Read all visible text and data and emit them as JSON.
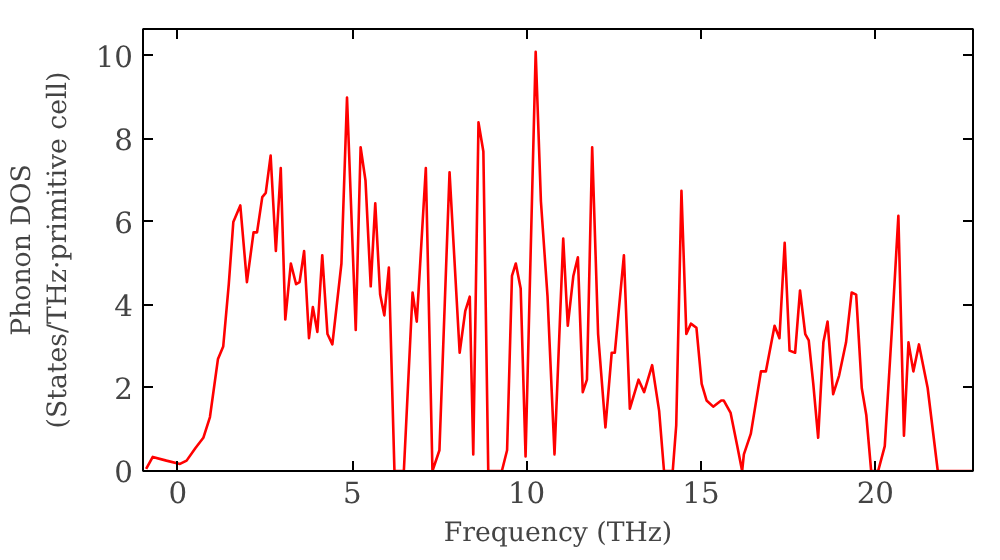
{
  "chart_data": {
    "type": "line",
    "xlabel": "Frequency (THz)",
    "ylabel": "Phonon DOS\n(States/THz·primitive cell)",
    "xlim": [
      -1,
      22.8
    ],
    "ylim": [
      0,
      10.65
    ],
    "xticks": [
      0,
      5,
      10,
      15,
      20
    ],
    "yticks": [
      0,
      2,
      4,
      6,
      8,
      10
    ],
    "grid": false,
    "marker": "none",
    "line_style": "solid",
    "series": [
      {
        "color": "#ff0000",
        "x": [
          -0.91,
          -0.72,
          -0.33,
          0.06,
          0.25,
          0.5,
          0.73,
          0.92,
          1.15,
          1.3,
          1.46,
          1.59,
          1.79,
          1.98,
          2.17,
          2.27,
          2.42,
          2.52,
          2.66,
          2.81,
          2.95,
          3.08,
          3.24,
          3.39,
          3.49,
          3.62,
          3.76,
          3.87,
          4.0,
          4.14,
          4.29,
          4.43,
          4.69,
          4.85,
          5.1,
          5.24,
          5.38,
          5.53,
          5.66,
          5.8,
          5.92,
          6.05,
          6.21,
          6.48,
          6.73,
          6.85,
          7.11,
          7.3,
          7.5,
          7.79,
          8.08,
          8.24,
          8.37,
          8.47,
          8.62,
          8.76,
          8.9,
          9.29,
          9.44,
          9.58,
          9.69,
          9.83,
          9.97,
          10.26,
          10.41,
          10.6,
          10.8,
          11.05,
          11.18,
          11.34,
          11.47,
          11.61,
          11.73,
          11.88,
          12.05,
          12.26,
          12.44,
          12.53,
          12.79,
          12.96,
          13.21,
          13.37,
          13.6,
          13.8,
          13.94,
          14.19,
          14.29,
          14.44,
          14.58,
          14.71,
          14.87,
          15.02,
          15.16,
          15.35,
          15.58,
          15.65,
          15.85,
          16.04,
          16.18,
          16.23,
          16.43,
          16.72,
          16.86,
          17.11,
          17.25,
          17.4,
          17.54,
          17.7,
          17.84,
          17.99,
          18.09,
          18.22,
          18.36,
          18.51,
          18.63,
          18.79,
          18.96,
          19.16,
          19.32,
          19.45,
          19.61,
          19.74,
          19.88,
          20.08,
          20.27,
          20.47,
          20.66,
          20.82,
          20.95,
          21.09,
          21.25,
          21.5,
          21.79,
          22.77
        ],
        "values": [
          0.05,
          0.34,
          0.25,
          0.17,
          0.25,
          0.55,
          0.8,
          1.3,
          2.7,
          3.0,
          4.5,
          6.0,
          6.4,
          4.55,
          5.75,
          5.75,
          6.6,
          6.7,
          7.6,
          5.3,
          7.3,
          3.65,
          5.0,
          4.5,
          4.55,
          5.3,
          3.2,
          3.95,
          3.35,
          5.2,
          3.3,
          3.05,
          5.0,
          9.0,
          3.4,
          7.8,
          7.0,
          4.45,
          6.45,
          4.25,
          3.75,
          4.9,
          0,
          0,
          4.3,
          3.6,
          7.3,
          0,
          0.5,
          7.2,
          2.85,
          3.85,
          4.2,
          0.4,
          8.4,
          7.7,
          0,
          0,
          0.5,
          4.7,
          5.0,
          4.4,
          0.35,
          10.1,
          6.5,
          4.2,
          0.4,
          5.6,
          3.5,
          4.7,
          5.15,
          1.9,
          2.2,
          7.8,
          3.3,
          1.05,
          2.85,
          2.85,
          5.2,
          1.5,
          2.2,
          1.9,
          2.55,
          1.45,
          0,
          0,
          1.1,
          6.75,
          3.3,
          3.55,
          3.45,
          2.1,
          1.7,
          1.55,
          1.7,
          1.7,
          1.4,
          0.6,
          0,
          0.4,
          0.9,
          2.4,
          2.4,
          3.5,
          3.2,
          5.5,
          2.9,
          2.85,
          4.35,
          3.3,
          3.15,
          2.1,
          0.8,
          3.1,
          3.6,
          1.85,
          2.3,
          3.1,
          4.3,
          4.25,
          2.0,
          1.35,
          0,
          0,
          0.6,
          3.35,
          6.15,
          0.85,
          3.1,
          2.4,
          3.05,
          2.0,
          0,
          0
        ]
      }
    ]
  }
}
